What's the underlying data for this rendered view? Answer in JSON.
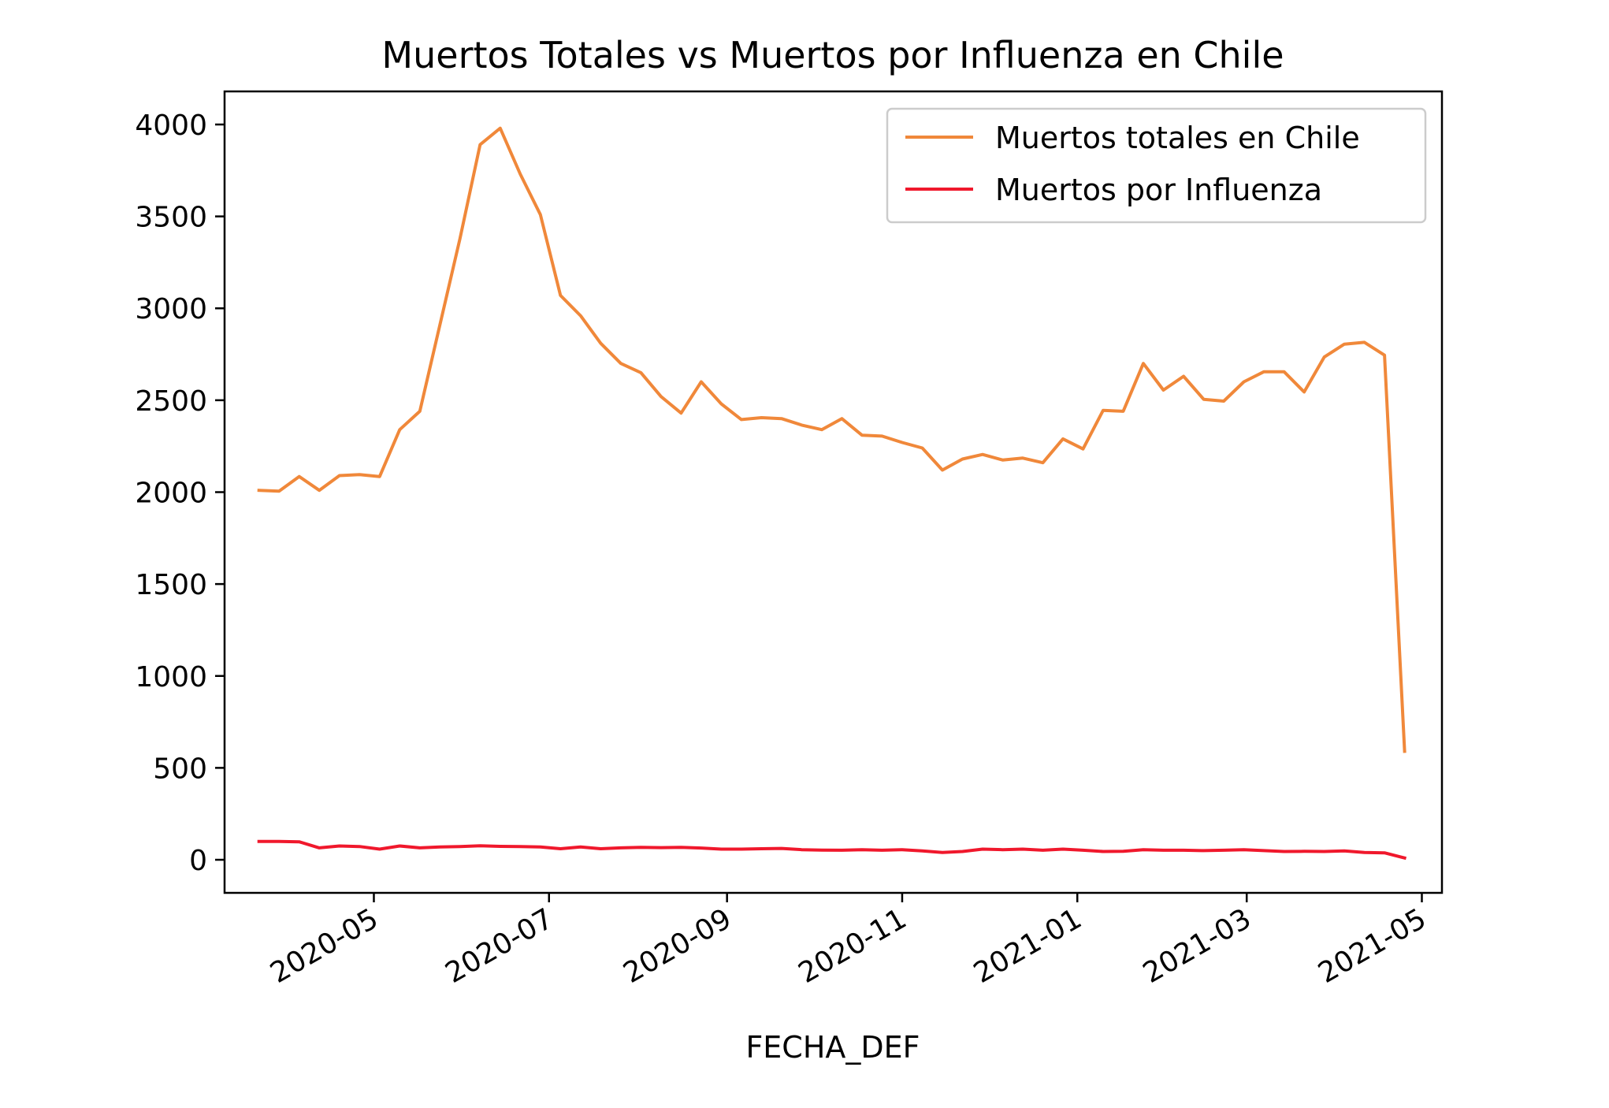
{
  "chart_data": {
    "type": "line",
    "title": "Muertos Totales vs Muertos por Influenza en Chile",
    "xlabel": "FECHA_DEF",
    "ylabel": "",
    "xlim": [
      "2020-03-10",
      "2021-05-08"
    ],
    "ylim": [
      -180,
      4180
    ],
    "grid": false,
    "legend_position": "upper right",
    "x_ticks": [
      "2020-05-01",
      "2020-07-01",
      "2020-09-01",
      "2020-11-01",
      "2021-01-01",
      "2021-03-01",
      "2021-05-01"
    ],
    "x_tick_labels": [
      "2020-05",
      "2020-07",
      "2020-09",
      "2020-11",
      "2021-01",
      "2021-03",
      "2021-05"
    ],
    "y_ticks": [
      0,
      500,
      1000,
      1500,
      2000,
      2500,
      3000,
      3500,
      4000
    ],
    "y_tick_labels": [
      "0",
      "500",
      "1000",
      "1500",
      "2000",
      "2500",
      "3000",
      "3500",
      "4000"
    ],
    "x": [
      "2020-03-22",
      "2020-03-29",
      "2020-04-05",
      "2020-04-12",
      "2020-04-19",
      "2020-04-26",
      "2020-05-03",
      "2020-05-10",
      "2020-05-17",
      "2020-05-24",
      "2020-05-31",
      "2020-06-07",
      "2020-06-14",
      "2020-06-21",
      "2020-06-28",
      "2020-07-05",
      "2020-07-12",
      "2020-07-19",
      "2020-07-26",
      "2020-08-02",
      "2020-08-09",
      "2020-08-16",
      "2020-08-23",
      "2020-08-30",
      "2020-09-06",
      "2020-09-13",
      "2020-09-20",
      "2020-09-27",
      "2020-10-04",
      "2020-10-11",
      "2020-10-18",
      "2020-10-25",
      "2020-11-01",
      "2020-11-08",
      "2020-11-15",
      "2020-11-22",
      "2020-11-29",
      "2020-12-06",
      "2020-12-13",
      "2020-12-20",
      "2020-12-27",
      "2021-01-03",
      "2021-01-10",
      "2021-01-17",
      "2021-01-24",
      "2021-01-31",
      "2021-02-07",
      "2021-02-14",
      "2021-02-21",
      "2021-02-28",
      "2021-03-07",
      "2021-03-14",
      "2021-03-21",
      "2021-03-28",
      "2021-04-04",
      "2021-04-11",
      "2021-04-18",
      "2021-04-25"
    ],
    "series": [
      {
        "name": "Muertos totales en Chile",
        "color": "#f0883a",
        "values": [
          2010,
          2005,
          2085,
          2010,
          2090,
          2095,
          2085,
          2340,
          2440,
          2910,
          3380,
          3890,
          3980,
          3730,
          3510,
          3070,
          2960,
          2810,
          2700,
          2650,
          2520,
          2430,
          2600,
          2480,
          2395,
          2405,
          2400,
          2365,
          2340,
          2400,
          2310,
          2305,
          2270,
          2240,
          2120,
          2180,
          2205,
          2175,
          2185,
          2160,
          2290,
          2235,
          2445,
          2440,
          2700,
          2555,
          2630,
          2505,
          2495,
          2600,
          2655,
          2655,
          2545,
          2735,
          2805,
          2815,
          2745,
          590
        ]
      },
      {
        "name": "Muertos por Influenza",
        "color": "#f0182c",
        "values": [
          100,
          100,
          98,
          65,
          75,
          72,
          58,
          75,
          65,
          70,
          72,
          76,
          73,
          72,
          70,
          60,
          70,
          60,
          65,
          68,
          66,
          68,
          64,
          58,
          58,
          60,
          62,
          55,
          53,
          52,
          55,
          52,
          55,
          48,
          40,
          45,
          58,
          55,
          58,
          52,
          58,
          52,
          45,
          46,
          55,
          52,
          52,
          50,
          52,
          55,
          50,
          45,
          46,
          45,
          48,
          40,
          38,
          10
        ]
      }
    ]
  }
}
